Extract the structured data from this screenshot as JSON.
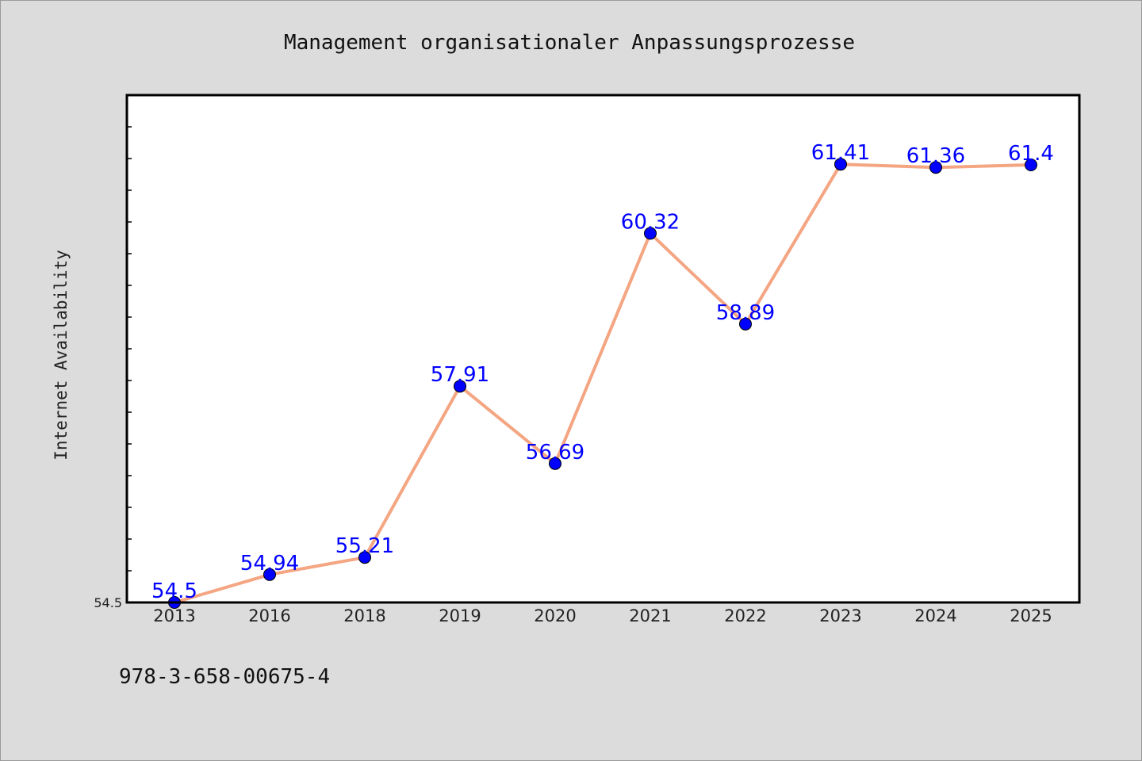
{
  "chart_data": {
    "type": "line",
    "title": "Management organisationaler Anpassungsprozesse",
    "xlabel": "",
    "ylabel": "Internet Availability",
    "categories": [
      "2013",
      "2016",
      "2018",
      "2019",
      "2020",
      "2021",
      "2022",
      "2023",
      "2024",
      "2025"
    ],
    "series": [
      {
        "values": [
          54.5,
          54.94,
          55.21,
          57.91,
          56.69,
          60.32,
          58.89,
          61.41,
          61.36,
          61.4
        ],
        "data_labels": [
          "54.5",
          "54.94",
          "55.21",
          "57.91",
          "56.69",
          "60.32",
          "58.89",
          "61.41",
          "61.36",
          "61.4"
        ]
      }
    ],
    "yticks": [
      "54.5"
    ],
    "ylim": [
      54.5,
      62.5
    ],
    "grid": false,
    "colors": {
      "line": "#f4a582",
      "marker": "#0000ff",
      "label": "#0000ff"
    }
  },
  "footer": {
    "isbn": "978-3-658-00675-4"
  }
}
